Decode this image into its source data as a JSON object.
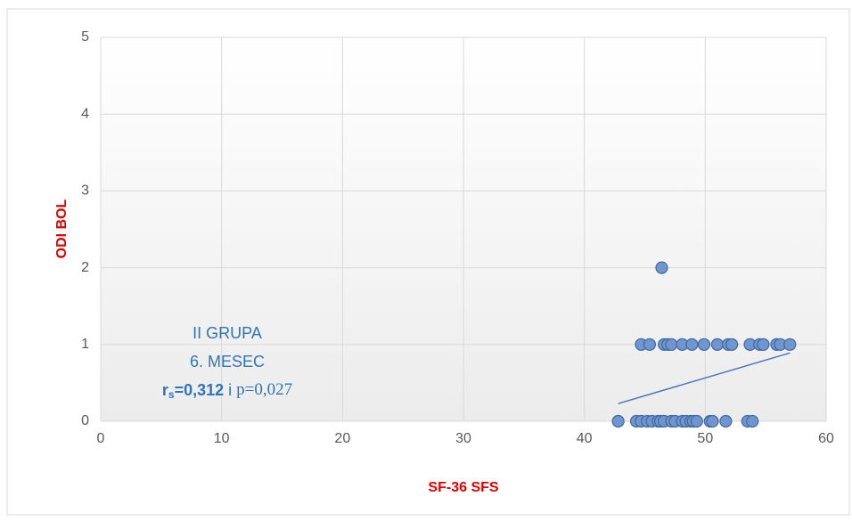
{
  "chart_data": {
    "type": "scatter",
    "xlabel": "SF-36 SFS",
    "ylabel": "ODI BOL",
    "x": [
      42.8,
      44.3,
      44.7,
      45.2,
      45.6,
      46.1,
      46.3,
      46.6,
      47.2,
      47.5,
      48.1,
      48.4,
      48.8,
      49.0,
      49.3,
      50.4,
      50.6,
      51.7,
      53.5,
      53.9,
      44.7,
      45.4,
      46.6,
      46.9,
      47.2,
      48.1,
      48.9,
      49.9,
      51.0,
      51.9,
      52.2,
      53.7,
      54.5,
      54.8,
      55.9,
      56.2,
      57.0,
      46.4
    ],
    "y": [
      0,
      0,
      0,
      0,
      0,
      0,
      0,
      0,
      0,
      0,
      0,
      0,
      0,
      0,
      0,
      0,
      0,
      0,
      0,
      0,
      1,
      1,
      1,
      1,
      1,
      1,
      1,
      1,
      1,
      1,
      1,
      1,
      1,
      1,
      1,
      1,
      1,
      2
    ],
    "color": "#7096cf",
    "trendline": {
      "x": [
        42.8,
        57.0
      ],
      "y": [
        0.23,
        0.89
      ],
      "color": "#4a76b8"
    },
    "xlim": [
      0,
      60
    ],
    "xticks": [
      0,
      10,
      20,
      30,
      40,
      50,
      60
    ],
    "ylim": [
      0,
      5
    ],
    "yticks": [
      0,
      1,
      2,
      3,
      4,
      5
    ],
    "grid": true,
    "annotation": {
      "line1": "II GRUPA",
      "line2": "6. MESEC",
      "r": "r",
      "sub": "s",
      "rvalue": "=0,312",
      "conj": " i ",
      "p": "p=0,027"
    }
  }
}
